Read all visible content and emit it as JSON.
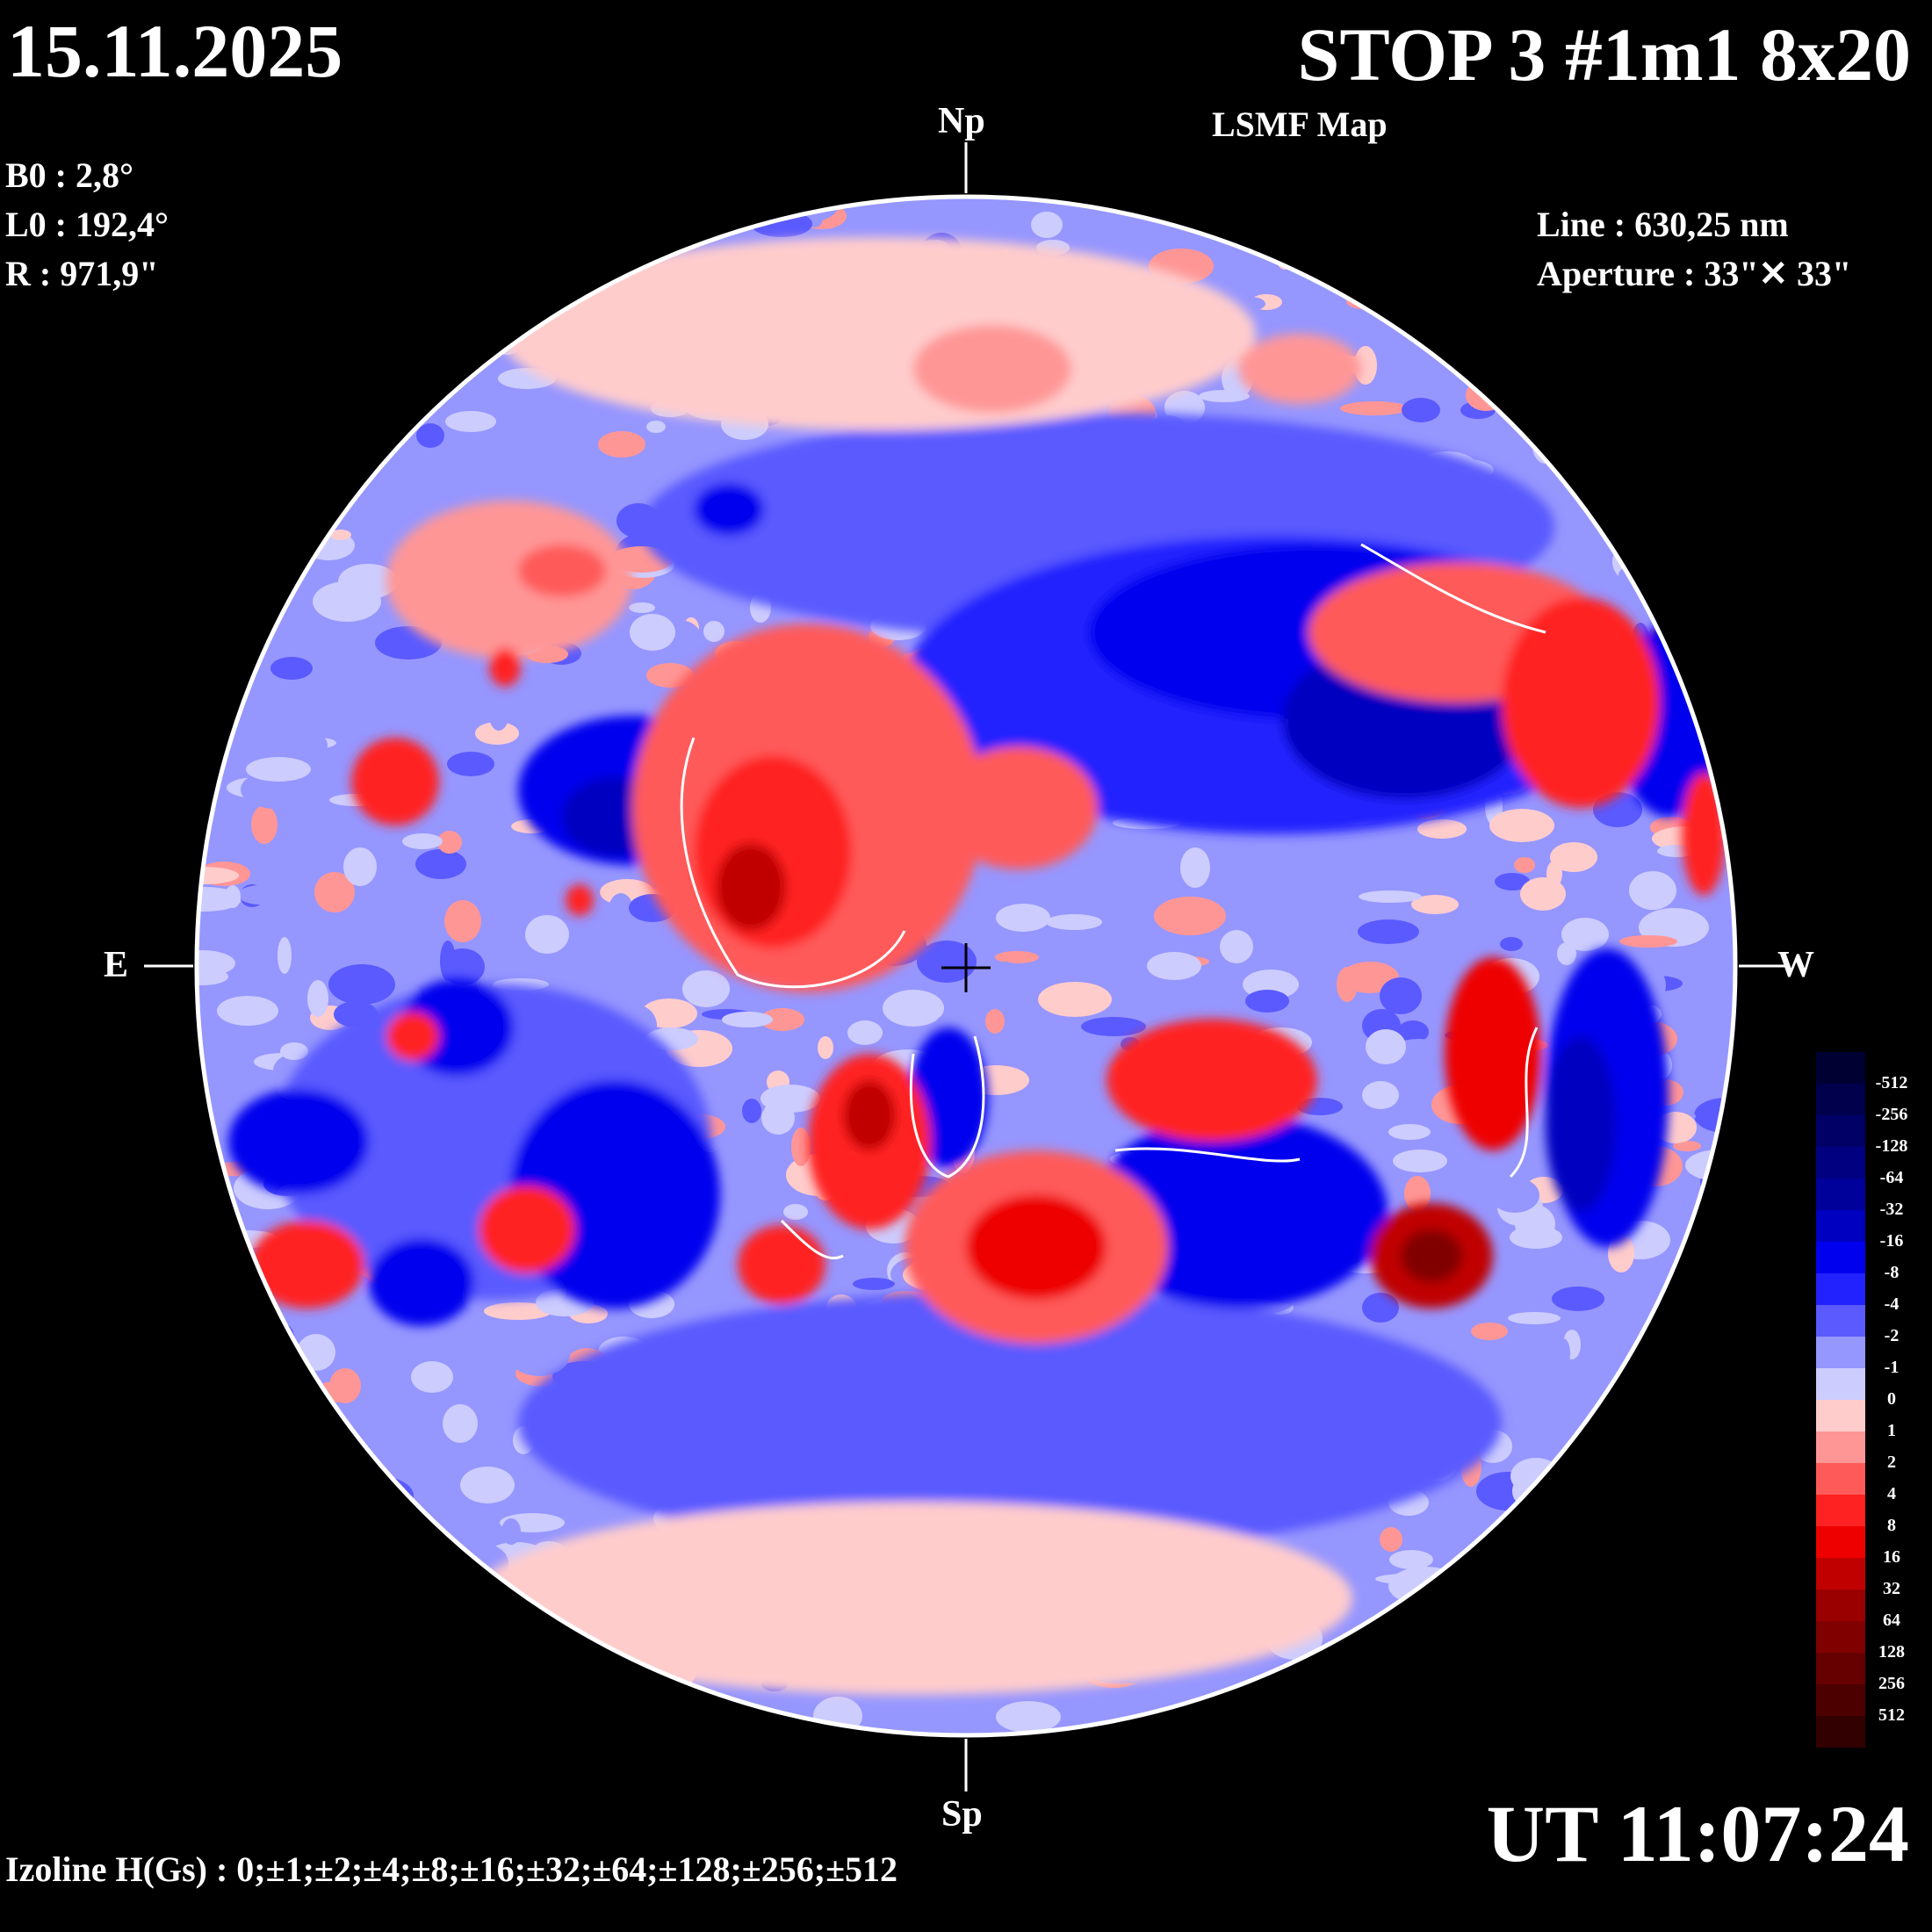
{
  "header": {
    "date": "15.11.2025",
    "title": "STOP 3 #1m1 8x20",
    "subtitle": "LSMF  Map"
  },
  "params": {
    "b0": "B0 : 2,8°",
    "l0": "L0 : 192,4°",
    "r": "R  : 971,9\""
  },
  "instrument": {
    "line": "Line :  630,25 nm",
    "aperture": "Aperture : 33\"✕ 33\""
  },
  "directions": {
    "north": "Np",
    "south": "Sp",
    "east": "E",
    "west": "W"
  },
  "time": "UT 11:07:24",
  "izoline": "Izoline H(Gs) : 0;±1;±2;±4;±8;±16;±32;±64;±128;±256;±512",
  "legend": {
    "labels": [
      "-512",
      "-256",
      "-128",
      "-64",
      "-32",
      "-16",
      "-8",
      "-4",
      "-2",
      "-1",
      "0",
      "1",
      "2",
      "4",
      "8",
      "16",
      "32",
      "64",
      "128",
      "256",
      "512"
    ],
    "colors": [
      "#000033",
      "#00004d",
      "#000066",
      "#000080",
      "#00009a",
      "#0000c0",
      "#0000ee",
      "#2222ff",
      "#5a5aff",
      "#9696ff",
      "#ccccff",
      "#ffcccc",
      "#ff9696",
      "#ff5a5a",
      "#ff2222",
      "#ee0000",
      "#c00000",
      "#9a0000",
      "#800000",
      "#660000",
      "#4d0000",
      "#330000"
    ]
  },
  "colors": {
    "background": "#000000",
    "text": "#ffffff",
    "positive": "#e60000",
    "negative": "#0000dd"
  }
}
